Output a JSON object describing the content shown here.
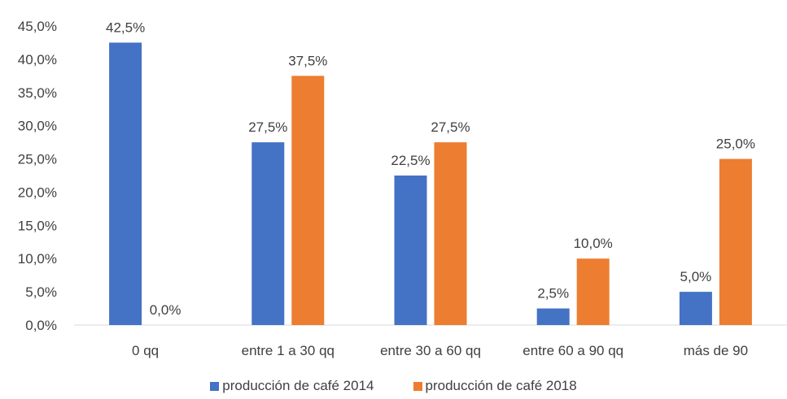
{
  "chart_data": {
    "type": "bar",
    "categories": [
      "0 qq",
      "entre 1 a 30 qq",
      "entre 30 a 60 qq",
      "entre 60 a 90 qq",
      "más de 90"
    ],
    "series": [
      {
        "name": "producción de café 2014",
        "values": [
          42.5,
          27.5,
          22.5,
          2.5,
          5.0
        ],
        "labels": [
          "42,5%",
          "27,5%",
          "22,5%",
          "2,5%",
          "5,0%"
        ],
        "color": "#4472C4"
      },
      {
        "name": "producción de café 2018",
        "values": [
          0.0,
          37.5,
          27.5,
          10.0,
          25.0
        ],
        "labels": [
          "0,0%",
          "37,5%",
          "27,5%",
          "10,0%",
          "25,0%"
        ],
        "color": "#ED7D31"
      }
    ],
    "ylim": [
      0,
      45
    ],
    "y_ticks": [
      "0,0%",
      "5,0%",
      "10,0%",
      "15,0%",
      "20,0%",
      "25,0%",
      "30,0%",
      "35,0%",
      "40,0%",
      "45,0%"
    ],
    "y_tick_values": [
      0,
      5,
      10,
      15,
      20,
      25,
      30,
      35,
      40,
      45
    ],
    "gridlines": false,
    "legend_position": "bottom"
  }
}
